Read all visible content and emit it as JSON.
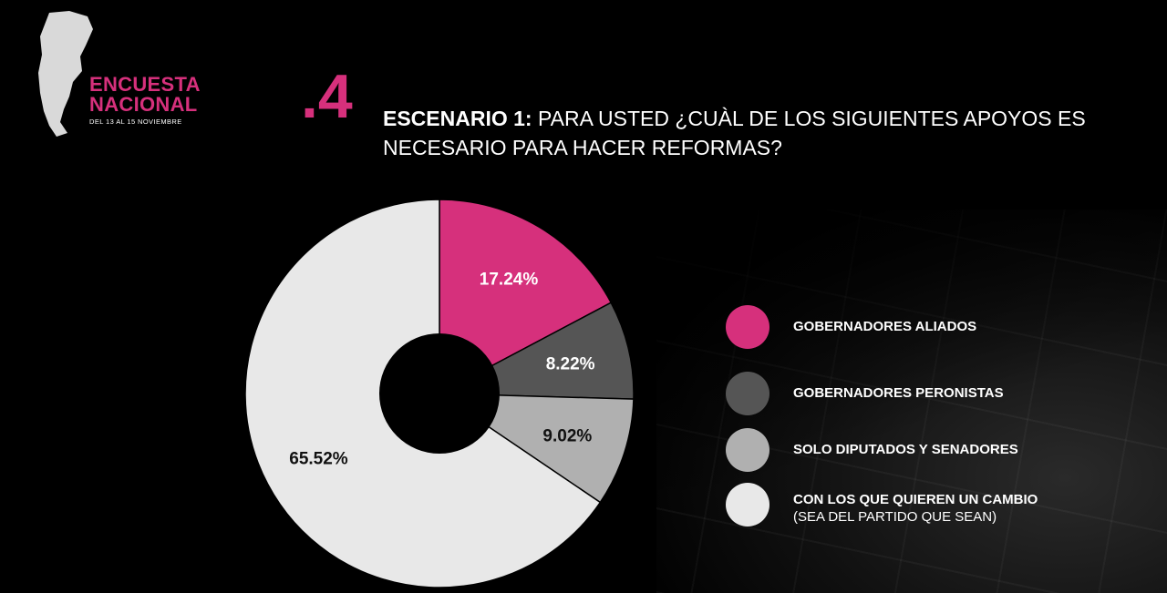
{
  "brand": {
    "title_line1": "ENCUESTA",
    "title_line2": "NACIONAL",
    "dates": "DEL 13 AL 15 NOVIEMBRE"
  },
  "question": {
    "number": ".4",
    "lead": "ESCENARIO 1:",
    "text": " PARA USTED ¿CUÀL DE LOS SIGUIENTES APOYOS ES NECESARIO PARA HACER REFORMAS?"
  },
  "colors": {
    "accent": "#d6307c",
    "background": "#000000"
  },
  "chart_data": {
    "type": "pie",
    "donut": true,
    "title": "",
    "slices": [
      {
        "name": "GOBERNADORES ALIADOS",
        "value": 17.24,
        "label": "17.24%",
        "color": "#d6307c",
        "label_color": "#ffffff"
      },
      {
        "name": "GOBERNADORES PERONISTAS",
        "value": 8.22,
        "label": "8.22%",
        "color": "#555555",
        "label_color": "#ffffff"
      },
      {
        "name": "SOLO DIPUTADOS Y SENADORES",
        "value": 9.02,
        "label": "9.02%",
        "color": "#b0b0b0",
        "label_color": "#111111"
      },
      {
        "name": "CON LOS QUE QUIEREN UN CAMBIO",
        "subname": "(SEA DEL PARTIDO QUE SEAN)",
        "value": 65.52,
        "label": "65.52%",
        "color": "#e8e8e8",
        "label_color": "#111111"
      }
    ],
    "legend_position": "right"
  }
}
